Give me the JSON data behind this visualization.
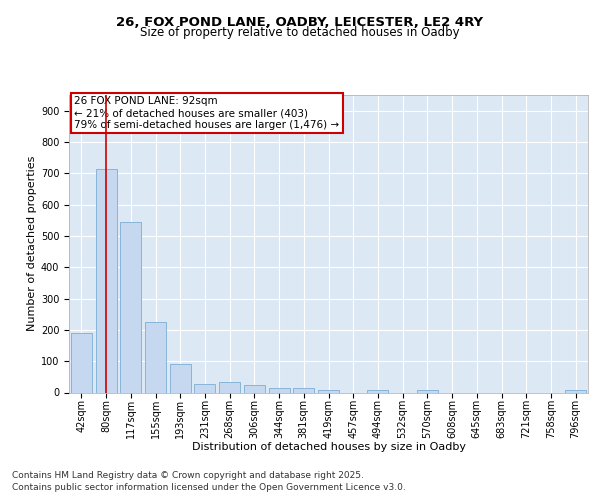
{
  "title_line1": "26, FOX POND LANE, OADBY, LEICESTER, LE2 4RY",
  "title_line2": "Size of property relative to detached houses in Oadby",
  "xlabel": "Distribution of detached houses by size in Oadby",
  "ylabel": "Number of detached properties",
  "bar_color": "#c5d8f0",
  "bar_edge_color": "#7aadd4",
  "background_color": "#dde8f5",
  "grid_color": "#ffffff",
  "categories": [
    "42sqm",
    "80sqm",
    "117sqm",
    "155sqm",
    "193sqm",
    "231sqm",
    "268sqm",
    "306sqm",
    "344sqm",
    "381sqm",
    "419sqm",
    "457sqm",
    "494sqm",
    "532sqm",
    "570sqm",
    "608sqm",
    "645sqm",
    "683sqm",
    "721sqm",
    "758sqm",
    "796sqm"
  ],
  "values": [
    190,
    715,
    545,
    225,
    90,
    28,
    35,
    24,
    13,
    13,
    8,
    0,
    8,
    0,
    8,
    0,
    0,
    0,
    0,
    0,
    8
  ],
  "ylim": [
    0,
    950
  ],
  "yticks": [
    0,
    100,
    200,
    300,
    400,
    500,
    600,
    700,
    800,
    900
  ],
  "redline_x": 1,
  "annotation_text": "26 FOX POND LANE: 92sqm\n← 21% of detached houses are smaller (403)\n79% of semi-detached houses are larger (1,476) →",
  "annotation_box_color": "#ffffff",
  "annotation_box_edge": "#cc0000",
  "redline_color": "#cc0000",
  "footer_line1": "Contains HM Land Registry data © Crown copyright and database right 2025.",
  "footer_line2": "Contains public sector information licensed under the Open Government Licence v3.0.",
  "title_fontsize": 9.5,
  "subtitle_fontsize": 8.5,
  "axis_label_fontsize": 8,
  "tick_fontsize": 7,
  "annotation_fontsize": 7.5,
  "footer_fontsize": 6.5
}
